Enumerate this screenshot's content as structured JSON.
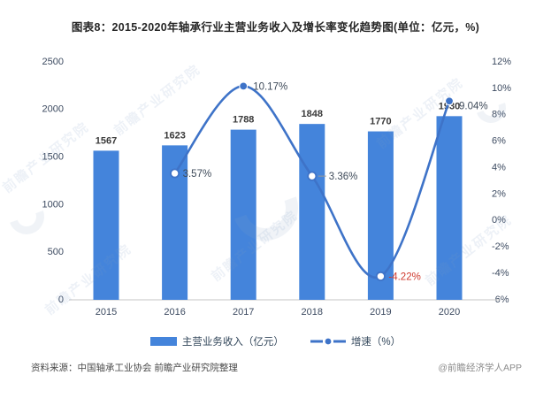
{
  "title": "图表8：2015-2020年轴承行业主营业务收入及增长率变化趋势图(单位：亿元，%)",
  "chart_data": {
    "type": "bar+line",
    "categories": [
      "2015",
      "2016",
      "2017",
      "2018",
      "2019",
      "2020"
    ],
    "series": [
      {
        "name": "主营业务收入（亿元）",
        "type": "bar",
        "axis": "left",
        "values": [
          1567,
          1623,
          1788,
          1848,
          1770,
          1930
        ],
        "labels": [
          "1567",
          "1623",
          "1788",
          "1848",
          "1770",
          "1930"
        ]
      },
      {
        "name": "增速（%）",
        "type": "line",
        "axis": "right",
        "values": [
          null,
          3.57,
          10.17,
          3.36,
          -4.22,
          9.04
        ],
        "labels": [
          null,
          "3.57%",
          "10.17%",
          "3.36%",
          "-4.22%",
          "9.04%"
        ],
        "marker_styles": [
          null,
          "hollow",
          "filled",
          "hollow",
          "hollow",
          "filled"
        ]
      }
    ],
    "left_axis": {
      "min": 0,
      "max": 2500,
      "ticks": [
        0,
        500,
        1000,
        1500,
        2000,
        2500
      ]
    },
    "right_axis": {
      "min": -6,
      "max": 12,
      "ticks": [
        -6,
        -4,
        -2,
        0,
        2,
        4,
        6,
        8,
        10,
        12
      ],
      "suffix": "%"
    },
    "grid": false,
    "legend_position": "bottom"
  },
  "colors": {
    "bar": "#4484db",
    "line": "#3e73c8",
    "bar_label": "#3a3a3a",
    "growth_label": "#3e4a59",
    "negative_growth_label": "#cf3a2e",
    "tick_label": "#3c4a60",
    "axis_line": "#d0d0d0",
    "title": "#262626"
  },
  "legend": {
    "items": [
      {
        "label": "主营业务收入（亿元）"
      },
      {
        "label": "增速（%）"
      }
    ]
  },
  "footer": {
    "source": "资料来源：中国轴承工业协会 前瞻产业研究院整理",
    "credit": "@前瞻经济学人APP"
  },
  "watermark": {
    "text": "前瞻产业研究院"
  }
}
